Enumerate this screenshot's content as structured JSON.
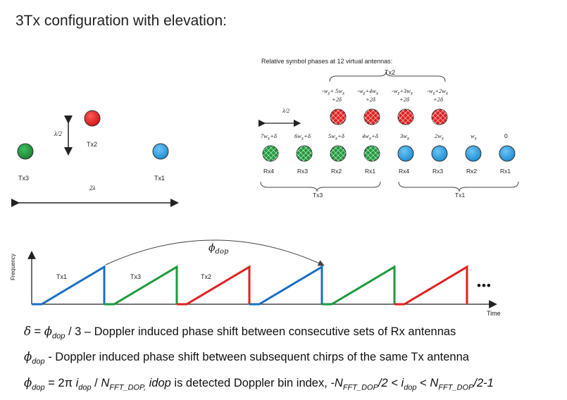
{
  "title": "3Tx configuration with elevation:",
  "left_diagram": {
    "tx_labels": [
      "Tx3",
      "Tx2",
      "Tx1"
    ],
    "half_lambda": "λ/2",
    "two_lambda": "2λ",
    "colors": {
      "tx1": "#2e9ee0",
      "tx2": "#e02020",
      "tx3": "#1e9a3c"
    }
  },
  "right_diagram": {
    "heading": "Relative symbol phases at 12 virtual  antennas:",
    "tx2_group_label": "Tx2",
    "half_lambda": "λ/2",
    "top_phases": [
      {
        "line1": "-wz+ 5wx",
        "line2": "+2δ"
      },
      {
        "line1": "-wz+4wx",
        "line2": "+2δ"
      },
      {
        "line1": "-wz+3wx",
        "line2": "+2δ"
      },
      {
        "line1": "-wz+2wx",
        "line2": "+2δ"
      }
    ],
    "mid_phases": [
      "7wx+δ",
      "6wx+δ",
      "5wx+δ",
      "4wx+δ",
      "3wx",
      "2wx",
      "wx",
      "0"
    ],
    "rx_labels": [
      "Rx4",
      "Rx3",
      "Rx2",
      "Rx1",
      "Rx4",
      "Rx3",
      "Rx2",
      "Rx1"
    ],
    "tx3_group_label": "Tx3",
    "tx1_group_label": "Tx1"
  },
  "timing": {
    "y_axis_label": "Frequency",
    "x_axis_label": "Time",
    "phi_label": "ϕdop",
    "chirp_labels": [
      "Tx1",
      "Tx3",
      "Tx2"
    ],
    "ellipsis": "•••",
    "chirp_sequence": [
      "tx1",
      "tx3",
      "tx2",
      "tx1",
      "tx3",
      "tx2"
    ]
  },
  "equations": {
    "eq1_sym": "δ = ϕdop",
    "eq1_text": "/ 3 – Doppler induced phase shift between consecutive sets of Rx antennas",
    "eq2_sym": "ϕdop",
    "eq2_text": "- Doppler induced phase shift between subsequent chirps of the same Tx antenna",
    "eq3_text": "ϕdop = 2π idop / NFFT_DOP, idop is detected Doppler bin index, -NFFT_DOP/2 < idop < NFFT_DOP/2-1"
  }
}
